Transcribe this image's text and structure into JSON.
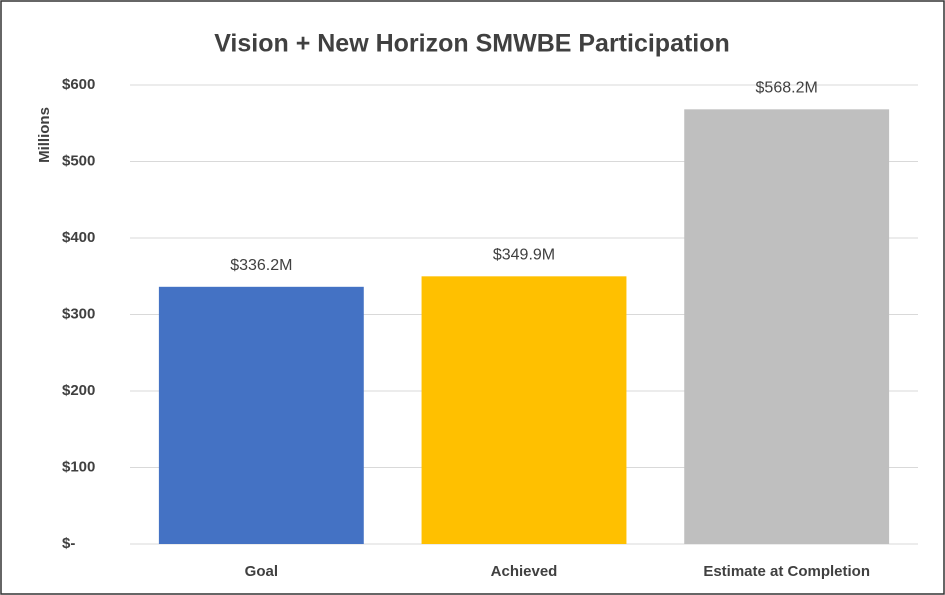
{
  "chart_data": {
    "type": "bar",
    "title": "Vision + New Horizon SMWBE Participation",
    "y_label": "Millions",
    "categories": [
      "Goal",
      "Achieved",
      "Estimate at Completion"
    ],
    "values": [
      336.2,
      349.9,
      568.2
    ],
    "value_labels": [
      "$336.2M",
      "$349.9M",
      "$568.2M"
    ],
    "colors": [
      "#4472c4",
      "#ffc000",
      "#bfbfbf"
    ],
    "ylim": [
      0,
      600
    ],
    "yticks": [
      {
        "value": 0,
        "label": "$-"
      },
      {
        "value": 100,
        "label": "$100"
      },
      {
        "value": 200,
        "label": "$200"
      },
      {
        "value": 300,
        "label": "$300"
      },
      {
        "value": 400,
        "label": "$400"
      },
      {
        "value": 500,
        "label": "$500"
      },
      {
        "value": 600,
        "label": "$600"
      }
    ],
    "grid": true
  }
}
